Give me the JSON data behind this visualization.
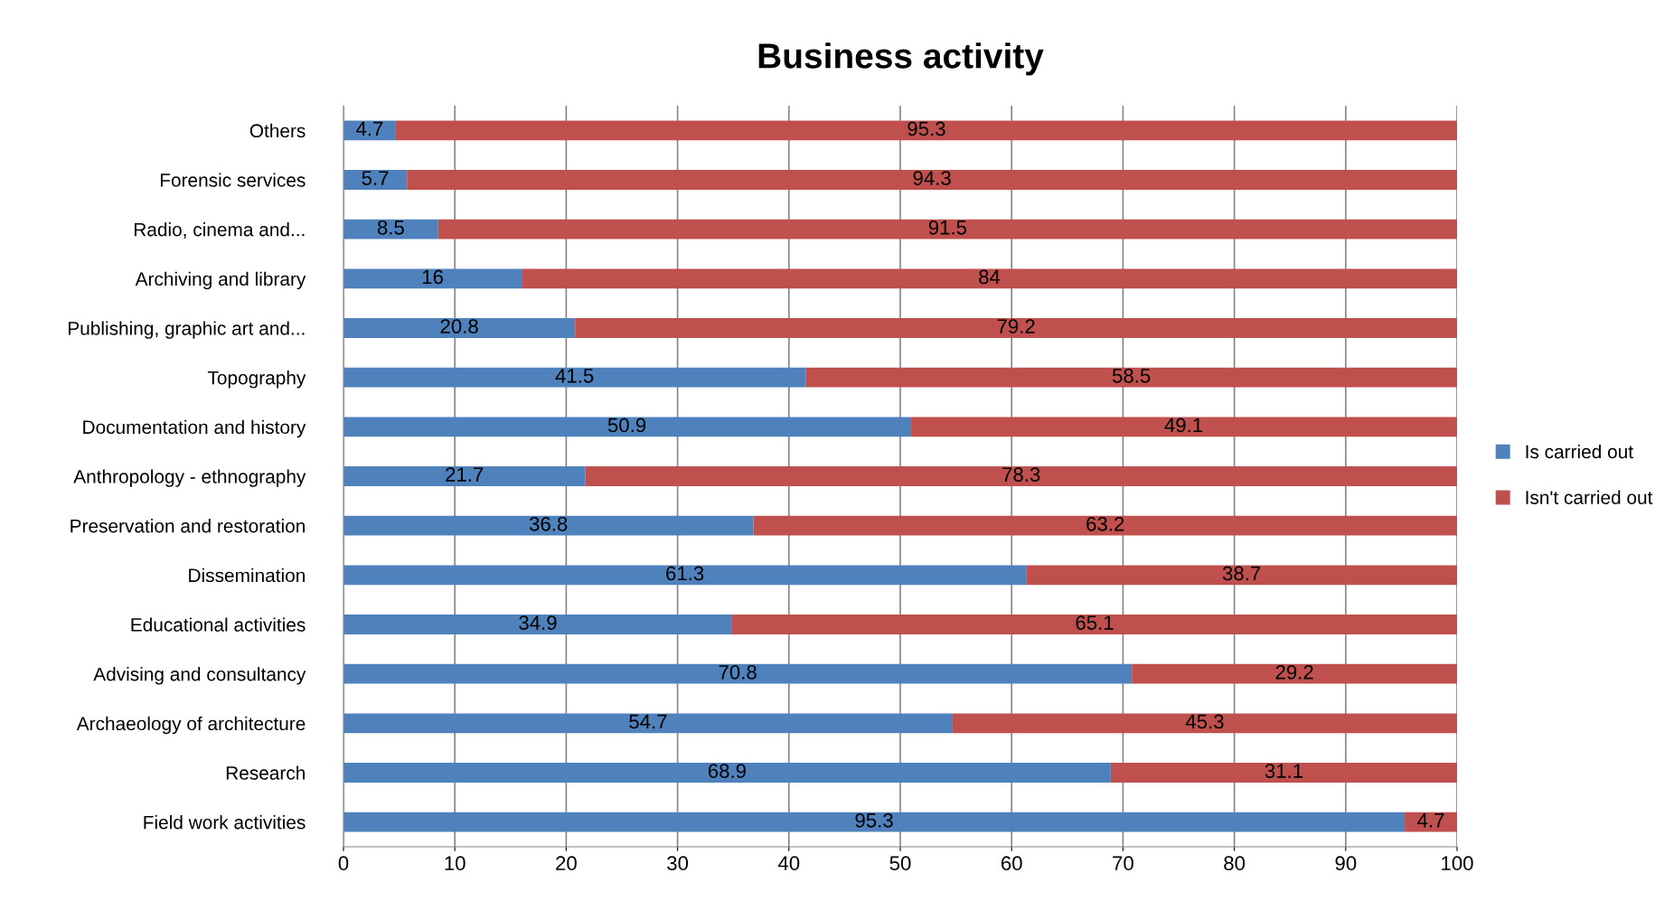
{
  "chart_data": {
    "type": "bar",
    "title": "Business activity",
    "orientation": "horizontal",
    "stacked": true,
    "categories": [
      "Others",
      "Forensic services",
      "Radio, cinema and...",
      "Archiving and library",
      "Publishing, graphic art and...",
      "Topography",
      "Documentation and history",
      "Anthropology - ethnography",
      "Preservation and restoration",
      "Dissemination",
      "Educational activities",
      "Advising and consultancy",
      "Archaeology of architecture",
      "Research",
      "Field work activities"
    ],
    "series": [
      {
        "name": "Is carried out",
        "color": "#4f81bd",
        "values": [
          4.7,
          5.7,
          8.5,
          16,
          20.8,
          41.5,
          50.9,
          21.7,
          36.8,
          61.3,
          34.9,
          70.8,
          54.7,
          68.9,
          95.3
        ]
      },
      {
        "name": "Isn't carried out",
        "color": "#c0504d",
        "values": [
          95.3,
          94.3,
          91.5,
          84,
          79.2,
          58.5,
          49.1,
          78.3,
          63.2,
          38.7,
          65.1,
          29.2,
          45.3,
          31.1,
          4.7
        ]
      }
    ],
    "xlim": [
      0,
      100
    ],
    "xticks": [
      0,
      10,
      20,
      30,
      40,
      50,
      60,
      70,
      80,
      90,
      100
    ],
    "grid": "x",
    "legend": "right",
    "data_labels": true
  }
}
